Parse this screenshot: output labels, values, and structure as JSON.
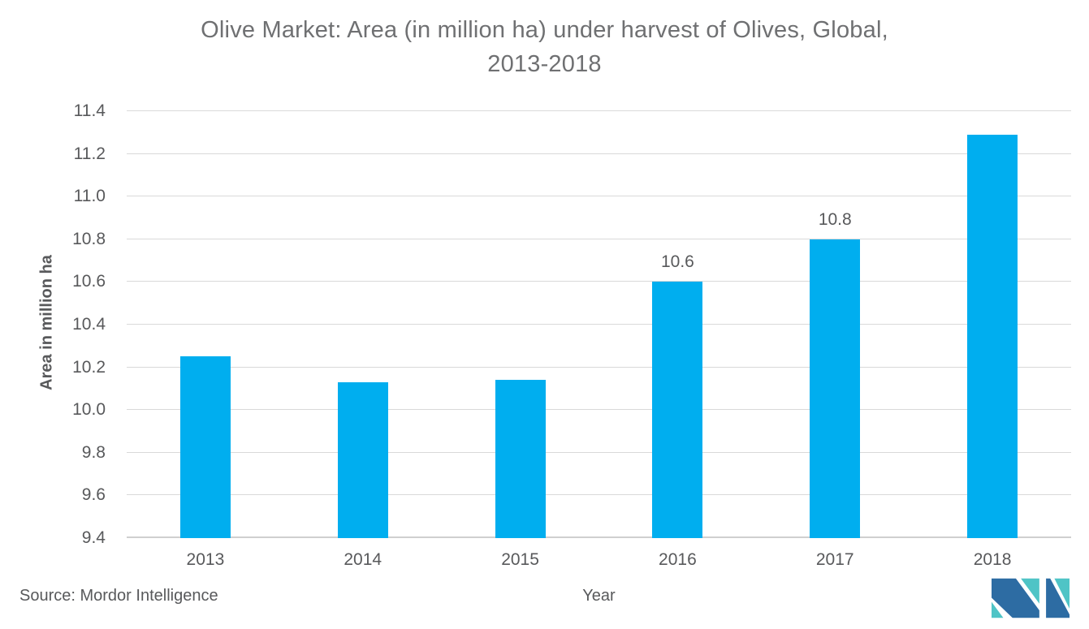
{
  "title": {
    "line1": "Olive Market: Area (in million ha) under harvest of Olives, Global,",
    "line2": "2013-2018"
  },
  "chart_data": {
    "type": "bar",
    "title": "Olive Market: Area (in million ha) under harvest of Olives, Global, 2013-2018",
    "categories": [
      "2013",
      "2014",
      "2015",
      "2016",
      "2017",
      "2018"
    ],
    "values": [
      10.25,
      10.13,
      10.14,
      10.6,
      10.8,
      11.29
    ],
    "bar_labels": [
      "",
      "",
      "",
      "10.6",
      "10.8",
      ""
    ],
    "xlabel": "Year",
    "ylabel": "Area in million ha",
    "ylim": [
      9.4,
      11.4
    ],
    "yticks": [
      9.4,
      9.6,
      9.8,
      10.0,
      10.2,
      10.4,
      10.6,
      10.8,
      11.0,
      11.2,
      11.4
    ],
    "ytick_labels": [
      "9.4",
      "9.6",
      "9.8",
      "10.0",
      "10.2",
      "10.4",
      "10.6",
      "10.8",
      "11.0",
      "11.2",
      "11.4"
    ],
    "grid": true,
    "legend_position": "none",
    "bar_color": "#00aeef",
    "gridline_color": "#d9d9d9",
    "baseline_color": "#cfcfcf"
  },
  "footer": {
    "source": "Source: Mordor Intelligence",
    "logo": {
      "name": "mordor-intelligence-logo",
      "dark_blue": "#2d6ca3",
      "teal": "#4fc4c6"
    }
  },
  "colors": {
    "title_text": "#6f7072",
    "axis_text": "#58595b",
    "background": "#ffffff"
  }
}
